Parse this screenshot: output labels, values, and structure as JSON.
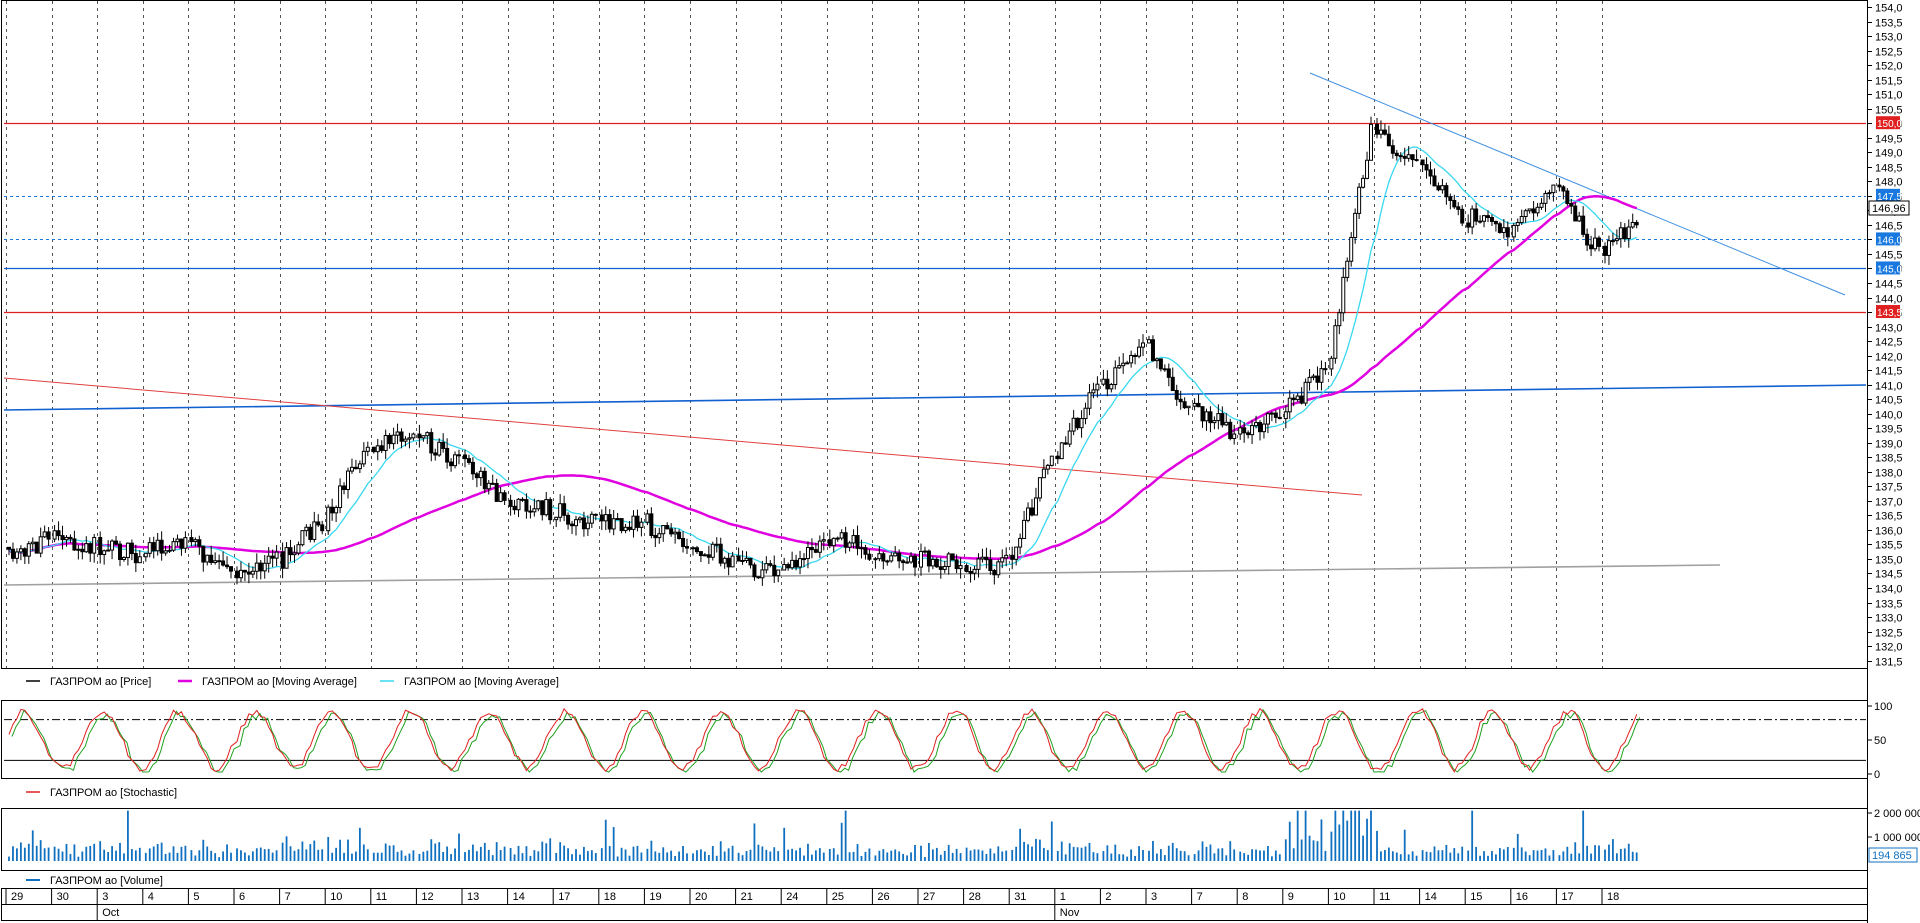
{
  "colors": {
    "candle": "#000000",
    "ma_slow": "#e000e0",
    "ma_fast": "#38d8f0",
    "resistance": "#e02020",
    "support_blue": "#1060d0",
    "dotted_level": "#1878e0",
    "trend_red": "#e04040",
    "trend_blue": "#4090e0",
    "grey_line": "#a0a0a0",
    "volume": "#1070c0",
    "stoch_k": "#e02020",
    "stoch_d": "#20a020"
  },
  "legends": {
    "price_series": "ГАЗПРОМ ао [Price]",
    "ma_slow": "ГАЗПРОМ ао [Moving Average]",
    "ma_fast": "ГАЗПРОМ ао [Moving Average]",
    "stochastic": "ГАЗПРОМ ао [Stochastic]",
    "volume": "ГАЗПРОМ ао [Volume]"
  },
  "x_axis": {
    "days": [
      "29",
      "30",
      "3",
      "4",
      "5",
      "6",
      "7",
      "10",
      "11",
      "12",
      "13",
      "14",
      "17",
      "18",
      "19",
      "20",
      "21",
      "24",
      "25",
      "26",
      "27",
      "28",
      "31",
      "1",
      "2",
      "3",
      "7",
      "8",
      "9",
      "10",
      "11",
      "14",
      "15",
      "16",
      "17",
      "18"
    ],
    "months": [
      {
        "label": "Oct",
        "day_index": 2
      },
      {
        "label": "Nov",
        "day_index": 23
      }
    ]
  },
  "price_panel": {
    "y_ticks": [
      "131,5",
      "132,0",
      "132,5",
      "133,0",
      "133,5",
      "134,0",
      "134,5",
      "135,0",
      "135,5",
      "136,0",
      "136,5",
      "137,0",
      "137,5",
      "138,0",
      "138,5",
      "139,0",
      "139,5",
      "140,0",
      "140,5",
      "141,0",
      "141,5",
      "142,0",
      "142,5",
      "143,0",
      "143,5",
      "144,0",
      "144,5",
      "145,0",
      "145,5",
      "146,0",
      "146,5",
      "147,0",
      "147,5",
      "148,0",
      "148,5",
      "149,0",
      "149,5",
      "150,0",
      "150,5",
      "151,0",
      "151,5",
      "152,0",
      "152,5",
      "153,0",
      "153,5",
      "154,0"
    ],
    "badges": [
      {
        "text": "150,0",
        "value": 150.0,
        "color": "#e02020"
      },
      {
        "text": "147,5",
        "value": 147.5,
        "color": "#1878e0"
      },
      {
        "text": "146,0",
        "value": 146.0,
        "color": "#1878e0"
      },
      {
        "text": "145,0",
        "value": 145.0,
        "color": "#1878e0"
      },
      {
        "text": "143,5",
        "value": 143.5,
        "color": "#e02020"
      }
    ],
    "last_price_label": "146,96"
  },
  "stoch_panel": {
    "y_ticks": [
      "100",
      "50",
      "0"
    ],
    "upper_level": 80,
    "lower_level": 20
  },
  "volume_panel": {
    "y_ticks": [
      "2 000 000",
      "1 000 000"
    ],
    "last_volume_label": "194 865"
  },
  "chart_data": {
    "type": "candlestick",
    "symbol": "ГАЗПРОМ ао",
    "y_range": [
      131.2,
      154.2
    ],
    "daily_close": [
      135.7,
      135.4,
      135.2,
      135.5,
      134.6,
      134.9,
      136.3,
      139.0,
      139.3,
      138.3,
      137.0,
      136.7,
      136.2,
      136.3,
      135.5,
      135.0,
      134.4,
      135.8,
      135.3,
      135.0,
      134.8,
      134.8,
      138.5,
      140.8,
      142.5,
      140.2,
      139.4,
      140.0,
      141.5,
      149.8,
      148.5,
      146.8,
      146.4,
      147.8,
      145.5,
      147.0
    ],
    "overlay_lines": [
      {
        "name": "resistance 150",
        "kind": "horizontal",
        "value": 150.0
      },
      {
        "name": "level 147,5",
        "kind": "horizontal-dotted",
        "value": 147.5
      },
      {
        "name": "level 146",
        "kind": "horizontal-dotted",
        "value": 146.0
      },
      {
        "name": "support 145",
        "kind": "horizontal",
        "value": 145.0
      },
      {
        "name": "resistance 143,5",
        "kind": "horizontal",
        "value": 143.5
      }
    ],
    "stochastic": {
      "overbought": 80,
      "oversold": 20
    },
    "volume_max_label": "2 000 000"
  }
}
